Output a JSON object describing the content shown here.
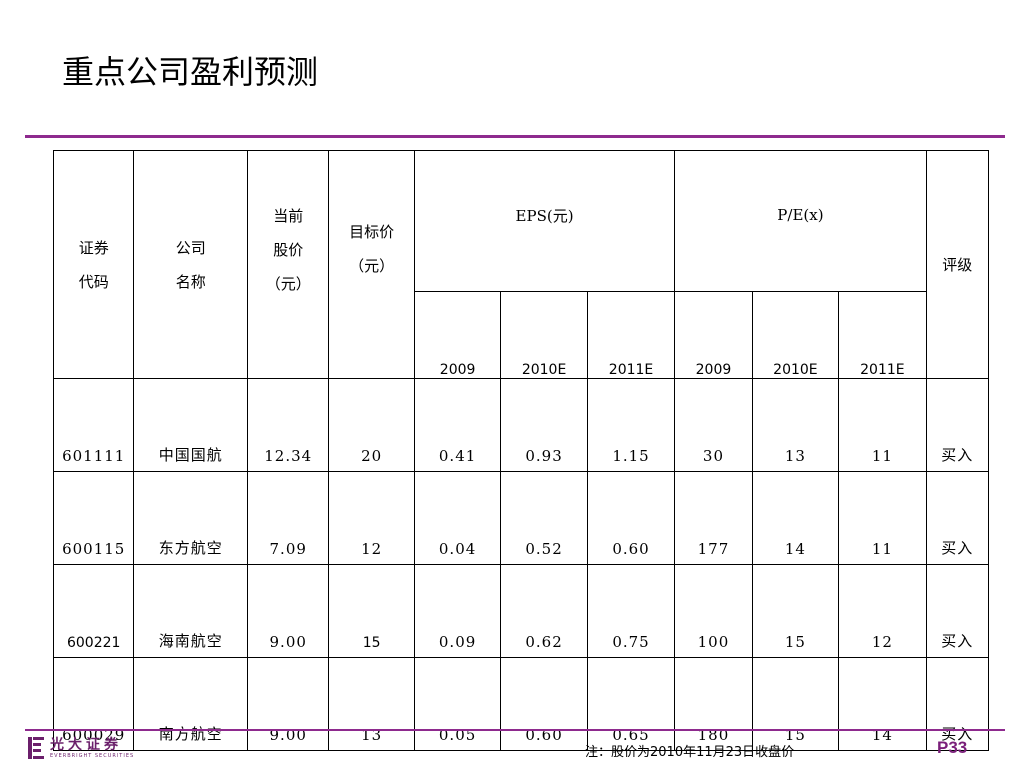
{
  "slide": {
    "title": "重点公司盈利预测",
    "footnote": "注：股价为2010年11月23日收盘价",
    "page_number": "P33",
    "accent_color": "#8e2a8e"
  },
  "logo": {
    "name_cn": "光大证券",
    "name_en": "EVERBRIGHT SECURITIES",
    "icon": "everbright-logo-icon"
  },
  "table": {
    "headers": {
      "code_line1": "证券",
      "code_line2": "代码",
      "company_line1": "公司",
      "company_line2": "名称",
      "price_line1": "当前",
      "price_line2": "股价",
      "price_line3": "（元）",
      "target_line1": "目标价",
      "target_line2": "（元）",
      "eps": "EPS(元)",
      "pe": "P/E(x)",
      "rating": "评级",
      "eps_years": [
        "2009",
        "2010E",
        "2011E"
      ],
      "pe_years": [
        "2009",
        "2010E",
        "2011E"
      ]
    },
    "rows": [
      {
        "code": "601111",
        "name": "中国国航",
        "price": "12.34",
        "target": "20",
        "eps_2009": "0.41",
        "eps_2010e": "0.93",
        "eps_2011e": "1.15",
        "pe_2009": "30",
        "pe_2010e": "13",
        "pe_2011e": "11",
        "rating": "买入"
      },
      {
        "code": "600115",
        "name": "东方航空",
        "price": "7.09",
        "target": "12",
        "eps_2009": "0.04",
        "eps_2010e": "0.52",
        "eps_2011e": "0.60",
        "pe_2009": "177",
        "pe_2010e": "14",
        "pe_2011e": "11",
        "rating": "买入"
      },
      {
        "code": "600221",
        "name": "海南航空",
        "price": "9.00",
        "target": "15",
        "eps_2009": "0.09",
        "eps_2010e": "0.62",
        "eps_2011e": "0.75",
        "pe_2009": "100",
        "pe_2010e": "15",
        "pe_2011e": "12",
        "rating": "买入"
      },
      {
        "code": "600029",
        "name": "南方航空",
        "price": "9.00",
        "target": "13",
        "eps_2009": "0.05",
        "eps_2010e": "0.60",
        "eps_2011e": "0.65",
        "pe_2009": "180",
        "pe_2010e": "15",
        "pe_2011e": "14",
        "rating": "买入"
      }
    ]
  }
}
